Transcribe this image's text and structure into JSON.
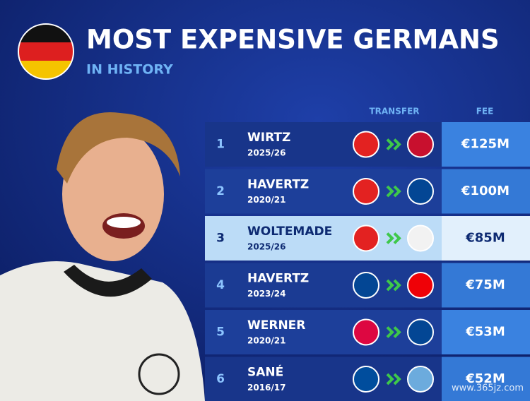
{
  "header": {
    "title": "MOST EXPENSIVE GERMANS",
    "subtitle": "IN HISTORY"
  },
  "table": {
    "columns": [
      "TRANSFER",
      "FEE"
    ],
    "rows": [
      {
        "rank": 1,
        "name": "WIRTZ",
        "season": "2025/26",
        "fee": "€125M"
      },
      {
        "rank": 2,
        "name": "HAVERTZ",
        "season": "2020/21",
        "fee": "€100M"
      },
      {
        "rank": 3,
        "name": "WOLTEMADE",
        "season": "2025/26",
        "fee": "€85M"
      },
      {
        "rank": 4,
        "name": "HAVERTZ",
        "season": "2023/24",
        "fee": "€75M"
      },
      {
        "rank": 5,
        "name": "WERNER",
        "season": "2020/21",
        "fee": "€53M"
      },
      {
        "rank": 6,
        "name": "SANÉ",
        "season": "2016/17",
        "fee": "€52M"
      }
    ]
  },
  "watermark": "www.365jz.com"
}
